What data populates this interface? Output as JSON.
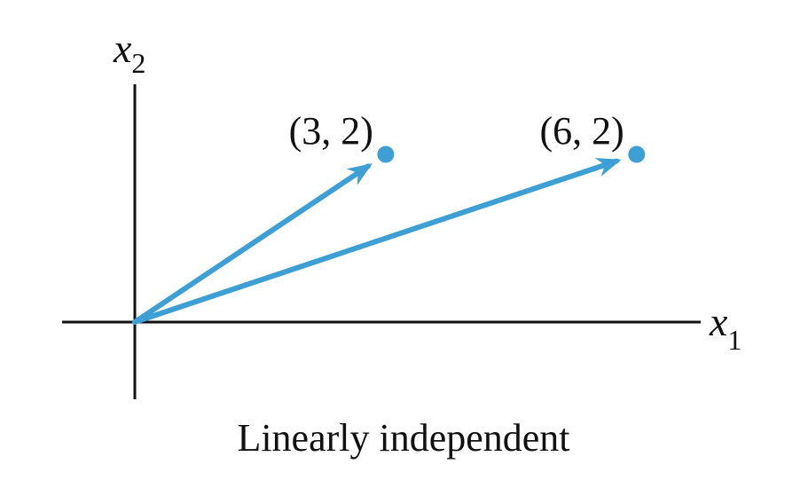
{
  "diagram": {
    "caption": "Linearly independent",
    "accent_color": "#3d9fd4",
    "axis_color": "#111111",
    "axes": {
      "x": {
        "var": "x",
        "sub": "1"
      },
      "y": {
        "var": "x",
        "sub": "2"
      }
    },
    "vectors": [
      {
        "label": "(3, 2)",
        "x": 3,
        "y": 2
      },
      {
        "label": "(6, 2)",
        "x": 6,
        "y": 2
      }
    ]
  }
}
